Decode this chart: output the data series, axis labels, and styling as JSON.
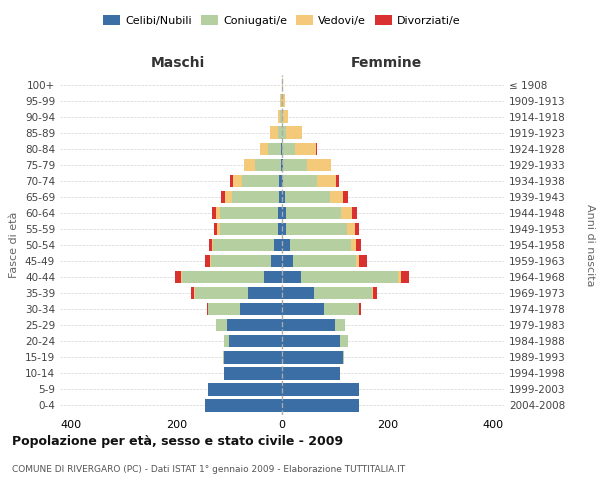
{
  "age_groups": [
    "0-4",
    "5-9",
    "10-14",
    "15-19",
    "20-24",
    "25-29",
    "30-34",
    "35-39",
    "40-44",
    "45-49",
    "50-54",
    "55-59",
    "60-64",
    "65-69",
    "70-74",
    "75-79",
    "80-84",
    "85-89",
    "90-94",
    "95-99",
    "100+"
  ],
  "birth_years": [
    "2004-2008",
    "1999-2003",
    "1994-1998",
    "1989-1993",
    "1984-1988",
    "1979-1983",
    "1974-1978",
    "1969-1973",
    "1964-1968",
    "1959-1963",
    "1954-1958",
    "1949-1953",
    "1944-1948",
    "1939-1943",
    "1934-1938",
    "1929-1933",
    "1924-1928",
    "1919-1923",
    "1914-1918",
    "1909-1913",
    "≤ 1908"
  ],
  "colors": {
    "celibi": "#3a6ea5",
    "coniugati": "#b5cfa0",
    "vedovi": "#f5c97a",
    "divorziati": "#d93030"
  },
  "males": {
    "celibi": [
      145,
      140,
      110,
      110,
      100,
      105,
      80,
      65,
      35,
      20,
      15,
      8,
      7,
      5,
      5,
      2,
      2,
      0,
      0,
      0,
      0
    ],
    "coniugati": [
      0,
      0,
      0,
      2,
      10,
      20,
      60,
      100,
      155,
      115,
      115,
      110,
      110,
      90,
      70,
      50,
      25,
      8,
      3,
      1,
      0
    ],
    "vedovi": [
      0,
      0,
      0,
      0,
      0,
      0,
      0,
      1,
      2,
      2,
      3,
      5,
      8,
      12,
      18,
      20,
      15,
      15,
      4,
      2,
      0
    ],
    "divorziati": [
      0,
      0,
      0,
      0,
      0,
      0,
      2,
      7,
      10,
      8,
      5,
      5,
      8,
      8,
      5,
      0,
      0,
      0,
      0,
      0,
      0
    ]
  },
  "females": {
    "celibi": [
      145,
      145,
      110,
      115,
      110,
      100,
      80,
      60,
      35,
      20,
      15,
      8,
      7,
      5,
      2,
      2,
      0,
      0,
      0,
      0,
      0
    ],
    "coniugati": [
      0,
      0,
      0,
      2,
      15,
      20,
      65,
      110,
      185,
      120,
      115,
      115,
      105,
      85,
      65,
      45,
      25,
      8,
      2,
      0,
      0
    ],
    "vedovi": [
      0,
      0,
      0,
      0,
      0,
      0,
      0,
      2,
      5,
      5,
      10,
      15,
      20,
      25,
      35,
      45,
      40,
      30,
      10,
      5,
      2
    ],
    "divorziati": [
      0,
      0,
      0,
      0,
      0,
      0,
      5,
      8,
      15,
      15,
      10,
      8,
      10,
      10,
      5,
      0,
      2,
      0,
      0,
      0,
      0
    ]
  },
  "xlim": 420,
  "title": "Popolazione per età, sesso e stato civile - 2009",
  "subtitle": "COMUNE DI RIVERGARO (PC) - Dati ISTAT 1° gennaio 2009 - Elaborazione TUTTITALIA.IT",
  "ylabel_left": "Fasce di età",
  "ylabel_right": "Anni di nascita"
}
